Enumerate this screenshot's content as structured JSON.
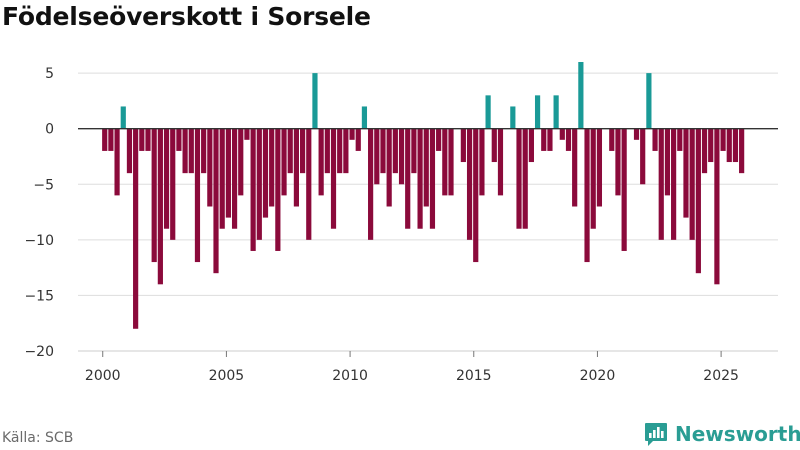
{
  "title": "Födelseöverskott i Sorsele",
  "source": "Källa: SCB",
  "brand": {
    "name": "Newsworthy",
    "icon": "newsworthy-logo-icon"
  },
  "colors": {
    "positive": "#1a9a97",
    "negative": "#8b0a3b",
    "grid": "#dddddd",
    "zero": "#333333",
    "axis_text": "#333333"
  },
  "chart_data": {
    "type": "bar",
    "title": "Födelseöverskott i Sorsele",
    "xlabel": "",
    "ylabel": "",
    "xlim": [
      1999,
      2027.3
    ],
    "ylim": [
      -20,
      6
    ],
    "yticks": [
      5,
      0,
      -5,
      -10,
      -15,
      -20
    ],
    "ytick_labels": [
      "5",
      "0",
      "−5",
      "−10",
      "−15",
      "−20"
    ],
    "xticks": [
      2000,
      2005,
      2010,
      2015,
      2020,
      2025
    ],
    "xtick_labels": [
      "2000",
      "2005",
      "2010",
      "2015",
      "2020",
      "2025"
    ],
    "grid": true,
    "series": [
      {
        "name": "Födelseöverskott",
        "x": [
          2000.08,
          2000.33,
          2000.58,
          2000.83,
          2001.08,
          2001.33,
          2001.58,
          2001.83,
          2002.08,
          2002.33,
          2002.58,
          2002.83,
          2003.08,
          2003.33,
          2003.58,
          2003.83,
          2004.08,
          2004.33,
          2004.58,
          2004.83,
          2005.08,
          2005.33,
          2005.58,
          2005.83,
          2006.08,
          2006.33,
          2006.58,
          2006.83,
          2007.08,
          2007.33,
          2007.58,
          2007.83,
          2008.08,
          2008.33,
          2008.58,
          2008.83,
          2009.08,
          2009.33,
          2009.58,
          2009.83,
          2010.08,
          2010.33,
          2010.58,
          2010.83,
          2011.08,
          2011.33,
          2011.58,
          2011.83,
          2012.08,
          2012.33,
          2012.58,
          2012.83,
          2013.08,
          2013.33,
          2013.58,
          2013.83,
          2014.08,
          2014.33,
          2014.58,
          2014.83,
          2015.08,
          2015.33,
          2015.58,
          2015.83,
          2016.08,
          2016.33,
          2016.58,
          2016.83,
          2017.08,
          2017.33,
          2017.58,
          2017.83,
          2018.08,
          2018.33,
          2018.58,
          2018.83,
          2019.08,
          2019.33,
          2019.58,
          2019.83,
          2020.08,
          2020.33,
          2020.58,
          2020.83,
          2021.08,
          2021.33,
          2021.58,
          2021.83,
          2022.08,
          2022.33,
          2022.58,
          2022.83,
          2023.08,
          2023.33,
          2023.58,
          2023.83,
          2024.08,
          2024.33,
          2024.58,
          2024.83,
          2025.08,
          2025.33,
          2025.58,
          2025.83
        ],
        "values": [
          -2,
          -2,
          -6,
          2,
          -4,
          -18,
          -2,
          -2,
          -12,
          -14,
          -9,
          -10,
          -2,
          -4,
          -4,
          -12,
          -4,
          -7,
          -13,
          -9,
          -8,
          -9,
          -6,
          -1,
          -11,
          -10,
          -8,
          -7,
          -11,
          -6,
          -4,
          -7,
          -4,
          -10,
          5,
          -6,
          -4,
          -9,
          -4,
          -4,
          -1,
          -2,
          2,
          -10,
          -5,
          -4,
          -7,
          -4,
          -5,
          -9,
          -4,
          -9,
          -7,
          -9,
          -2,
          -6,
          -6,
          0,
          -3,
          -10,
          -12,
          -6,
          3,
          -3,
          -6,
          0,
          2,
          -9,
          -9,
          -3,
          3,
          -2,
          -2,
          3,
          -1,
          -2,
          -7,
          6,
          -12,
          -9,
          -7,
          0,
          -2,
          -6,
          -11,
          0,
          -1,
          -5,
          5,
          -2,
          -10,
          -6,
          -10,
          -2,
          -8,
          -10,
          -13,
          -4,
          -3,
          -14,
          -2,
          -3,
          -3,
          -4
        ]
      }
    ]
  }
}
